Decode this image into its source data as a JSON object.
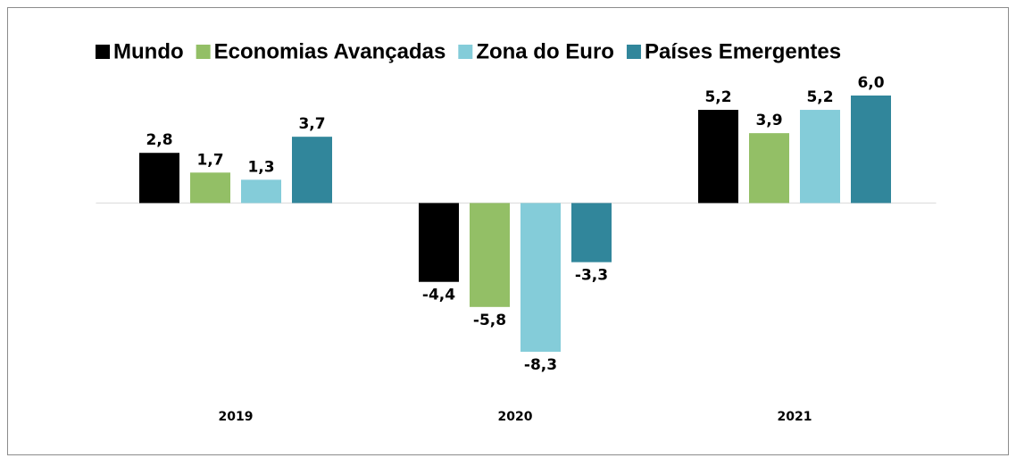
{
  "chart_data": {
    "type": "bar",
    "legend": "top",
    "categories": [
      "2019",
      "2020",
      "2021"
    ],
    "series": [
      {
        "name": "Mundo",
        "color": "#000000",
        "values": [
          2.8,
          -4.4,
          5.2
        ],
        "value_labels": [
          "2,8",
          "-4,4",
          "5,2"
        ]
      },
      {
        "name": "Economias Avançadas",
        "color": "#93bf66",
        "values": [
          1.7,
          -5.8,
          3.9
        ],
        "value_labels": [
          "1,7",
          "-5,8",
          "3,9"
        ]
      },
      {
        "name": "Zona do Euro",
        "color": "#84ccd9",
        "values": [
          1.3,
          -8.3,
          5.2
        ],
        "value_labels": [
          "1,3",
          "-8,3",
          "5,2"
        ]
      },
      {
        "name": "Países Emergentes",
        "color": "#31869b",
        "values": [
          3.7,
          -3.3,
          6.0
        ],
        "value_labels": [
          "3,7",
          "-3,3",
          "6,0"
        ]
      }
    ]
  }
}
